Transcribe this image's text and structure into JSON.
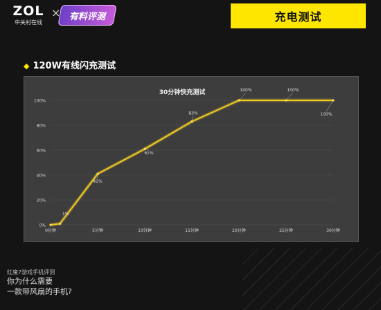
{
  "header": {
    "logo_text": "ZOL",
    "logo_sub": "中关村在线",
    "times": "×",
    "badge_text": "有料评测",
    "title": "充电测试"
  },
  "section": {
    "marker": "◆",
    "title": "120W有线闪充测试"
  },
  "footer": {
    "line1": "红魔7游戏手机评测",
    "line2": "你为什么需要",
    "line3": "一款带风扇的手机?"
  },
  "colors": {
    "accent": "#ffe600",
    "line": "#f2cc1f",
    "panel": "#3d3d3d"
  },
  "chart_data": {
    "type": "line",
    "title": "30分钟快充测试",
    "x": [
      0,
      1,
      5,
      10,
      15,
      20,
      25,
      30
    ],
    "categories": [
      "0分钟",
      "5分钟",
      "10分钟",
      "15分钟",
      "20分钟",
      "25分钟",
      "30分钟"
    ],
    "tick_values": [
      0,
      5,
      10,
      15,
      20,
      25,
      30
    ],
    "y_ticks": [
      "0%",
      "20%",
      "40%",
      "60%",
      "80%",
      "100%"
    ],
    "y_tick_values": [
      0,
      20,
      40,
      60,
      80,
      100
    ],
    "xlim": [
      0,
      30
    ],
    "ylim": [
      0,
      100
    ],
    "series": [
      {
        "values": [
          0,
          1,
          41,
          61,
          83,
          100,
          100,
          100
        ]
      }
    ],
    "data_labels": [
      "1%",
      "41%",
      "61%",
      "83%",
      "100%",
      "100%",
      "100%"
    ],
    "grid": true
  }
}
